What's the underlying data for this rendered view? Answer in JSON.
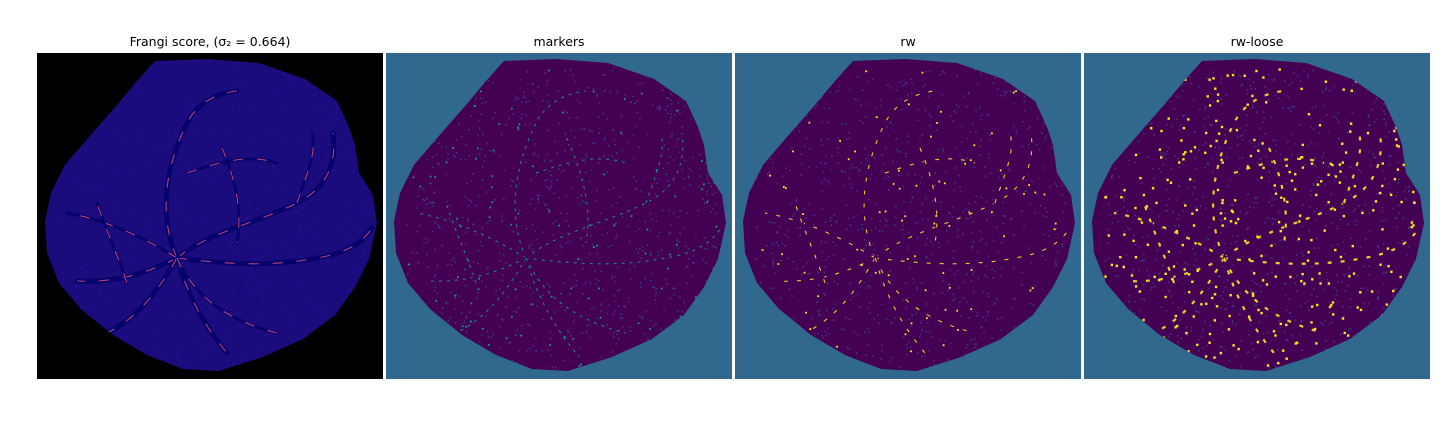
{
  "figure": {
    "panels": [
      {
        "title": "Frangi score, (σ₂ = 0.664)",
        "colormap": "plasma",
        "background": "#000000",
        "blob": "#1b0c7e",
        "vessel": "#0d0887",
        "accent": "#cc4778"
      },
      {
        "title": "markers",
        "colormap": "viridis",
        "background": "#31688e",
        "blob": "#440154",
        "vessel": "#440154",
        "accent": "#21918c"
      },
      {
        "title": "rw",
        "colormap": "viridis",
        "background": "#31688e",
        "blob": "#440154",
        "vessel": "#440154",
        "accent": "#fde725"
      },
      {
        "title": "rw-loose",
        "colormap": "viridis",
        "background": "#31688e",
        "blob": "#440154",
        "vessel": "#440154",
        "accent": "#fde725"
      }
    ]
  }
}
